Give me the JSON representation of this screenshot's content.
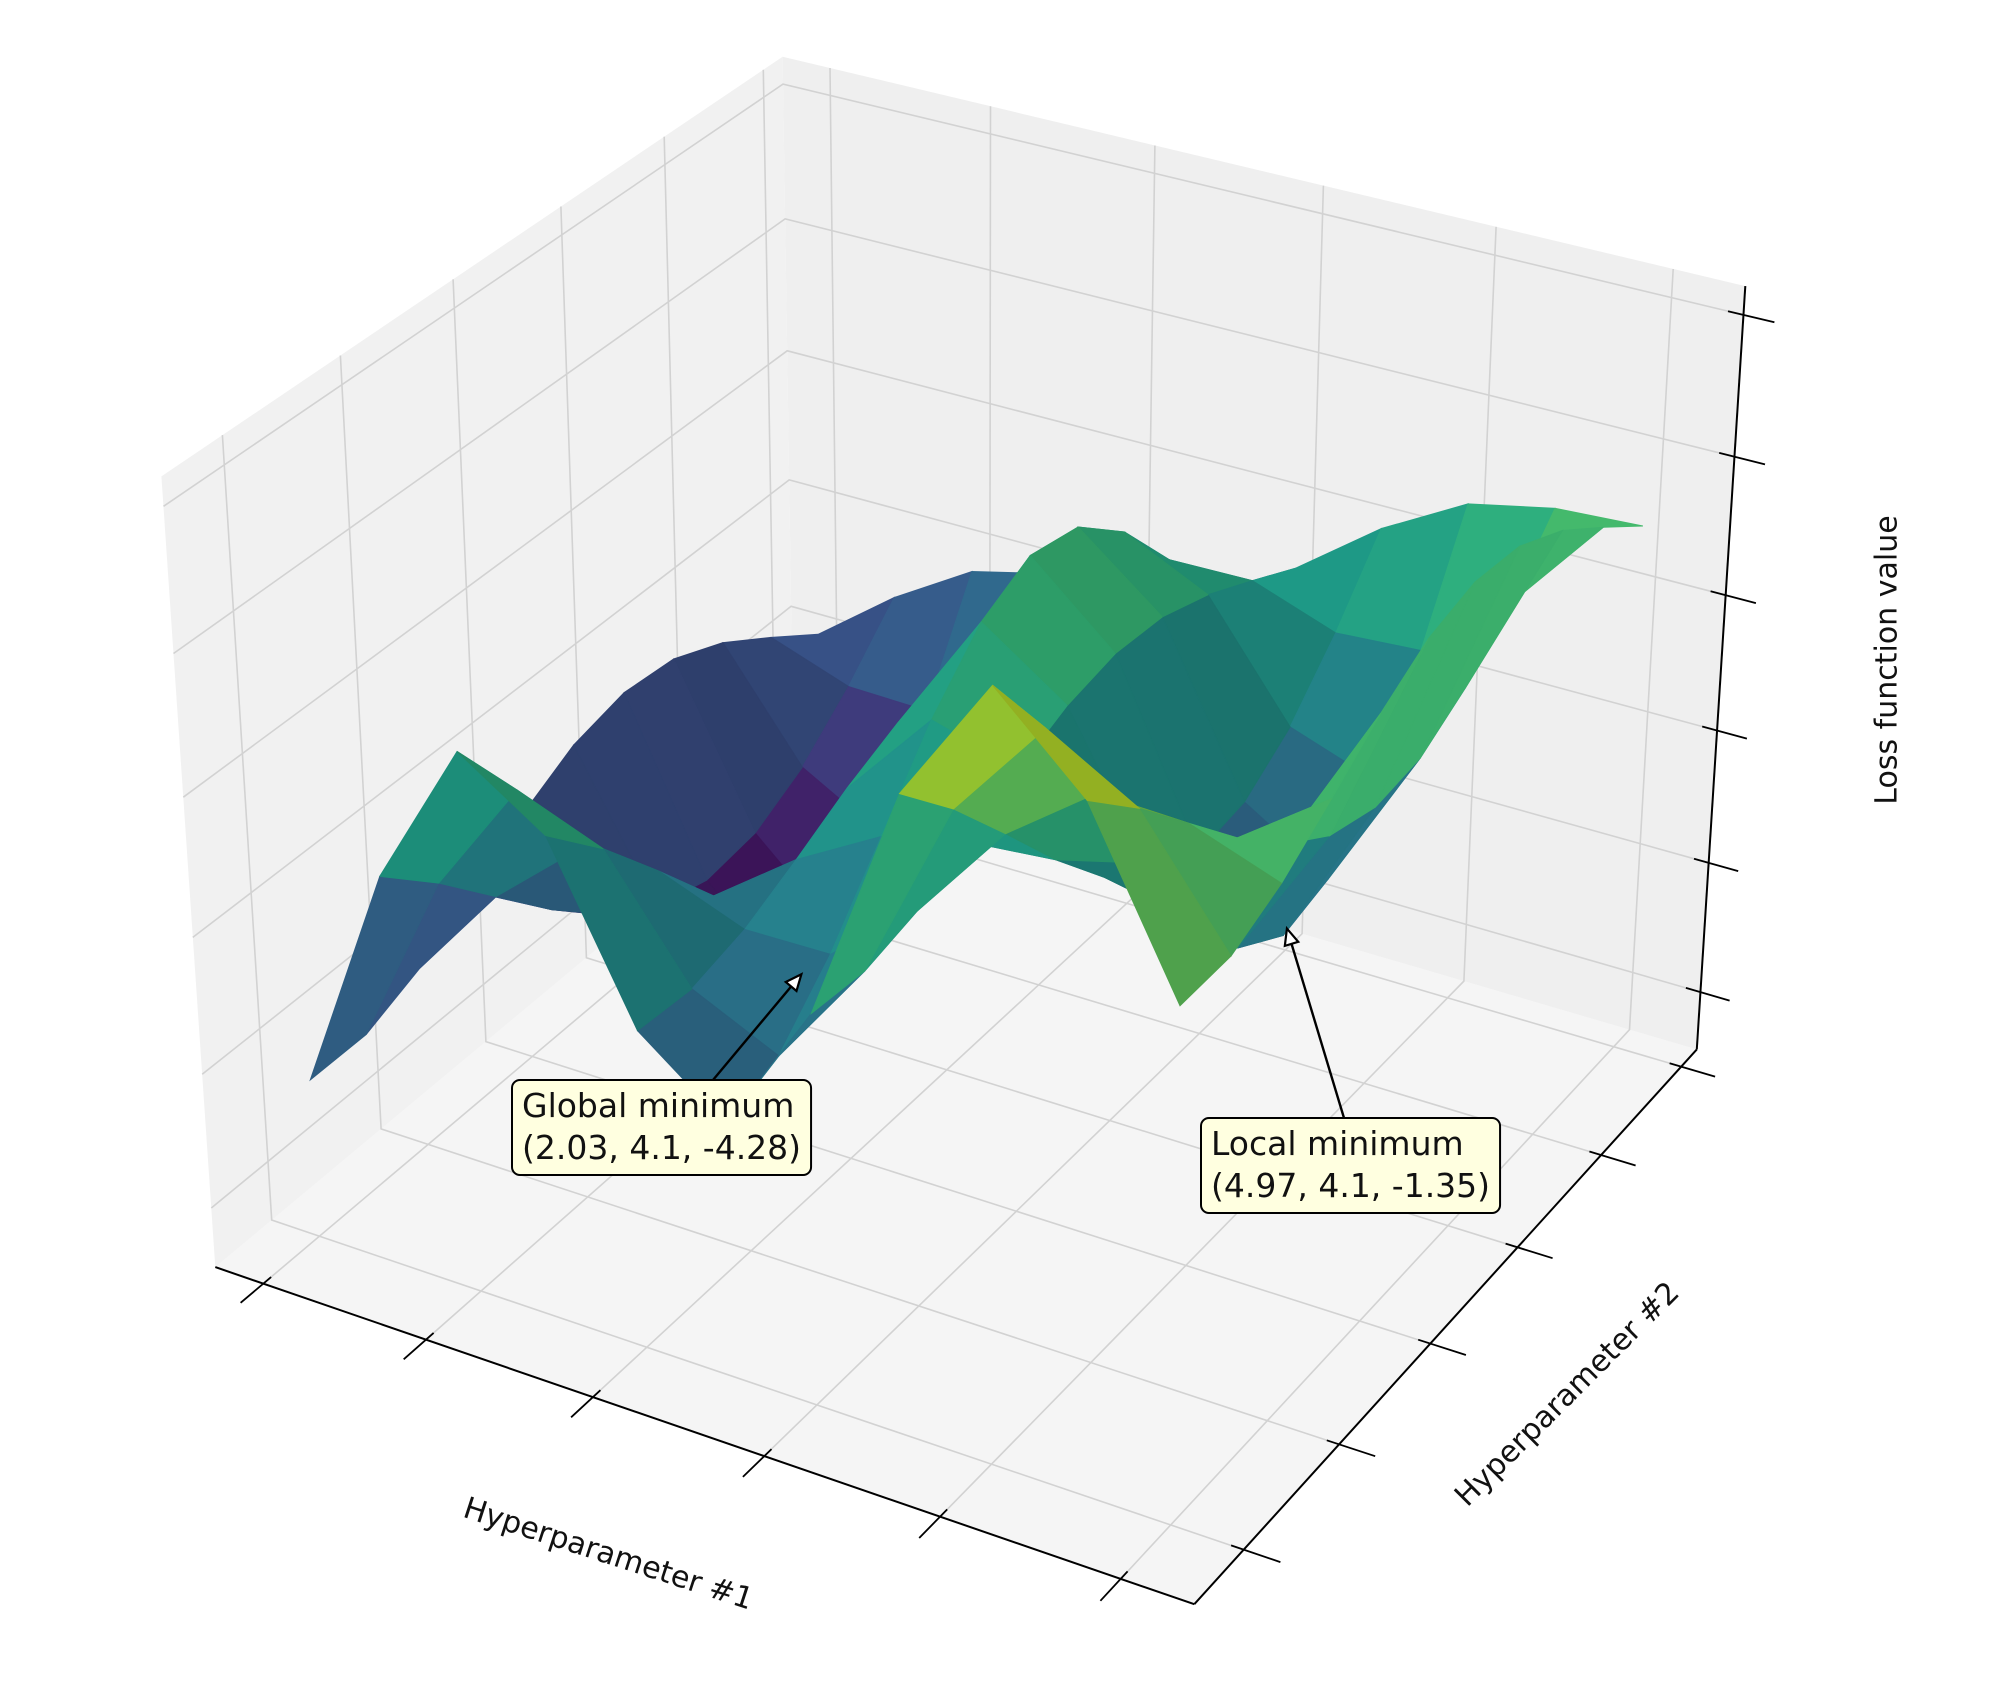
{
  "chart_data": {
    "type": "surface",
    "xlabel": "Hyperparameter #1",
    "ylabel": "Hyperparameter #2",
    "zlabel": "Loss function value",
    "colormap": "viridis",
    "x": [
      1,
      1.5,
      2,
      2.5,
      3,
      3.5,
      4,
      4.5,
      5,
      5.5,
      6
    ],
    "y": [
      1,
      1.5,
      2,
      2.5,
      3,
      3.5,
      4,
      4.5,
      5,
      5.5,
      6
    ],
    "z": [
      [
        -2.53,
        0.83,
        2.95,
        2.14,
        -0.24,
        -1.19,
        0.78,
        4.16,
        5.94,
        4.79,
        2.43
      ],
      [
        -2.53,
        0.09,
        1.79,
        1.32,
        -0.31,
        -0.89,
        0.71,
        3.33,
        4.77,
        4.06,
        2.44
      ],
      [
        -2.2,
        -0.75,
        0.29,
        0.36,
        -0.11,
        -0.09,
        0.9,
        2.36,
        3.28,
        3.23,
        2.78
      ],
      [
        -1.69,
        -1.59,
        -1.32,
        -0.64,
        0.26,
        0.96,
        1.25,
        1.36,
        1.68,
        2.4,
        3.3
      ],
      [
        -1.15,
        -2.32,
        -2.77,
        -1.51,
        0.67,
        2.01,
        1.65,
        0.47,
        0.22,
        1.68,
        3.85
      ],
      [
        -0.73,
        -2.84,
        -3.83,
        -2.14,
        0.99,
        2.81,
        1.96,
        -0.16,
        -0.83,
        1.17,
        4.28
      ],
      [
        -0.54,
        -3.07,
        -4.29,
        -2.41,
        1.14,
        3.18,
        2.11,
        -0.44,
        -1.3,
        0.95,
        4.47
      ],
      [
        -0.62,
        -2.97,
        -4.09,
        -2.29,
        1.07,
        3.02,
        2.05,
        -0.32,
        -1.1,
        1.04,
        4.39
      ],
      [
        -0.96,
        -2.56,
        -3.25,
        -1.8,
        0.81,
        2.38,
        1.79,
        0.18,
        -0.26,
        1.45,
        4.04
      ],
      [
        -1.47,
        -1.9,
        -1.93,
        -1.01,
        0.43,
        1.4,
        1.42,
        0.98,
        1.06,
        2.09,
        3.52
      ],
      [
        -2.01,
        -1.09,
        -0.35,
        -0.05,
        0.03,
        0.31,
        1.03,
        1.95,
        2.64,
        2.9,
        2.97
      ]
    ],
    "xlim": [
      0.7,
      6.4
    ],
    "ylim": [
      0.5,
      6.2
    ],
    "zlim": [
      -4.9,
      6.4
    ],
    "xticks": [
      1,
      2,
      3,
      4,
      5,
      6
    ],
    "yticks": [
      1,
      2,
      3,
      4,
      5,
      6
    ],
    "zticks": [
      -4,
      -2,
      0,
      2,
      4,
      6
    ],
    "annotations": [
      {
        "lines": [
          "Global minimum",
          "(2.03, 4.1, -4.28)"
        ],
        "x": 2.03,
        "y": 4.1,
        "z": -4.28
      },
      {
        "lines": [
          "Local minimum",
          "(4.97, 4.1, -1.35)"
        ],
        "x": 4.97,
        "y": 4.1,
        "z": -1.35
      }
    ]
  }
}
